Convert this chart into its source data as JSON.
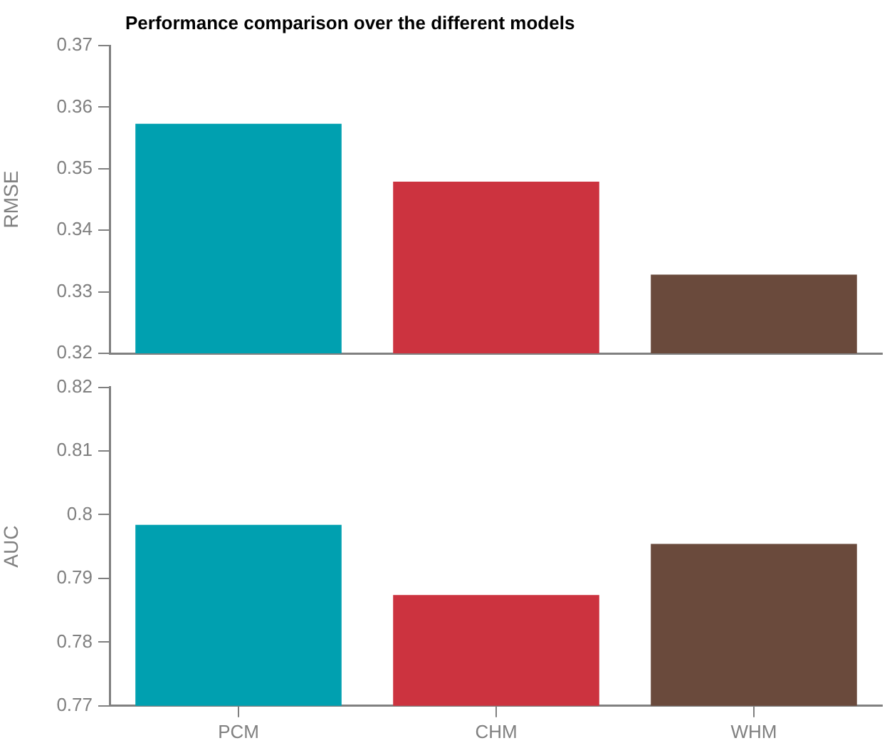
{
  "chart_data": [
    {
      "type": "bar",
      "title": "Performance comparison over the different models",
      "ylabel": "RMSE",
      "categories": [
        null,
        null,
        null
      ],
      "values": [
        0.3573,
        0.3479,
        0.3328
      ],
      "colors": [
        "#00a0b0",
        "#cc333f",
        "#6a4a3c"
      ],
      "ylim": [
        0.32,
        0.37
      ],
      "yticks": [
        0.32,
        0.33,
        0.34,
        0.35,
        0.36,
        0.37
      ],
      "tick_labels": "y",
      "grid": false,
      "legend": false
    },
    {
      "type": "bar",
      "ylabel": "AUC",
      "categories": [
        "PCM",
        "CHM",
        "WHM"
      ],
      "values": [
        0.7984,
        0.7874,
        0.7954
      ],
      "colors": [
        "#00a0b0",
        "#cc333f",
        "#6a4a3c"
      ],
      "ylim": [
        0.77,
        0.82
      ],
      "yticks": [
        0.77,
        0.78,
        0.79,
        0.8,
        0.81,
        0.82
      ],
      "grid": false,
      "legend": false
    }
  ]
}
